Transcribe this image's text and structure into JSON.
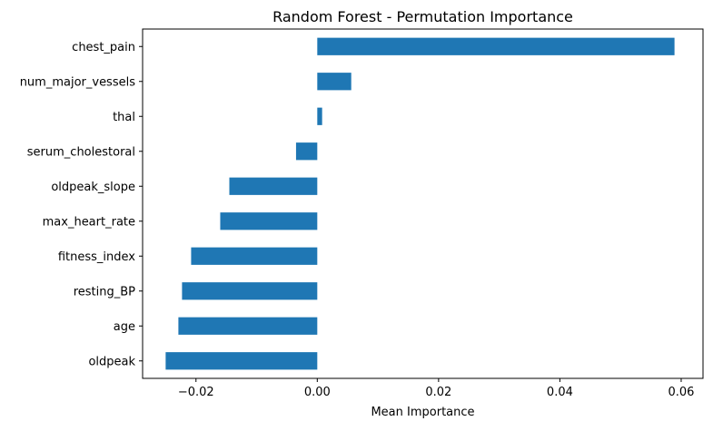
{
  "chart_data": {
    "type": "bar",
    "orientation": "horizontal",
    "title": "Random Forest - Permutation Importance",
    "xlabel": "Mean Importance",
    "ylabel": "",
    "categories": [
      "oldpeak",
      "age",
      "resting_BP ",
      "fitness_index",
      "max_heart_rate",
      "oldpeak_slope",
      "serum_cholestoral",
      "thal",
      "num_major_vessels",
      "chest_pain"
    ],
    "values": [
      -0.025,
      -0.0229,
      -0.0223,
      -0.0208,
      -0.016,
      -0.0145,
      -0.0035,
      0.0008,
      0.0056,
      0.0589
    ],
    "xlim": [
      -0.0288,
      0.0636
    ],
    "xticks": [
      -0.02,
      0.0,
      0.02,
      0.04,
      0.06
    ],
    "xtick_labels": [
      "−0.02",
      "0.00",
      "0.02",
      "0.04",
      "0.06"
    ],
    "bar_color": "#1f77b4",
    "grid": false,
    "legend": "none"
  }
}
